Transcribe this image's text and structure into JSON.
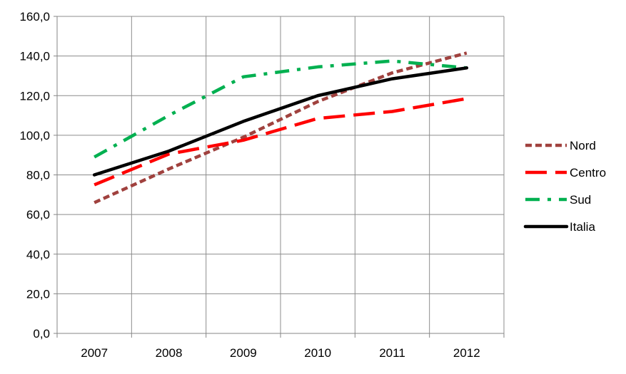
{
  "chart_data": {
    "type": "line",
    "title": "",
    "xlabel": "",
    "ylabel": "",
    "categories": [
      "2007",
      "2008",
      "2009",
      "2010",
      "2011",
      "2012"
    ],
    "ylim": [
      0,
      160
    ],
    "yticks": [
      0,
      20,
      40,
      60,
      80,
      100,
      120,
      140,
      160
    ],
    "ytick_labels": [
      "0,0",
      "20,0",
      "40,0",
      "60,0",
      "80,0",
      "100,0",
      "120,0",
      "140,0",
      "160,0"
    ],
    "grid": true,
    "legend_position": "right",
    "series": [
      {
        "name": "Nord",
        "values": [
          66.0,
          83.0,
          99.0,
          117.0,
          131.5,
          141.5
        ],
        "color": "#A0413E",
        "style": "short-dash"
      },
      {
        "name": "Centro",
        "values": [
          75.0,
          90.5,
          97.5,
          108.5,
          112.0,
          118.5
        ],
        "color": "#FF0000",
        "style": "long-dash"
      },
      {
        "name": "Sud",
        "values": [
          89.0,
          110.0,
          129.5,
          134.5,
          137.5,
          134.0
        ],
        "color": "#00B050",
        "style": "dash-dot"
      },
      {
        "name": "Italia",
        "values": [
          80.0,
          92.0,
          107.0,
          120.0,
          128.5,
          134.0
        ],
        "color": "#000000",
        "style": "solid"
      }
    ]
  }
}
